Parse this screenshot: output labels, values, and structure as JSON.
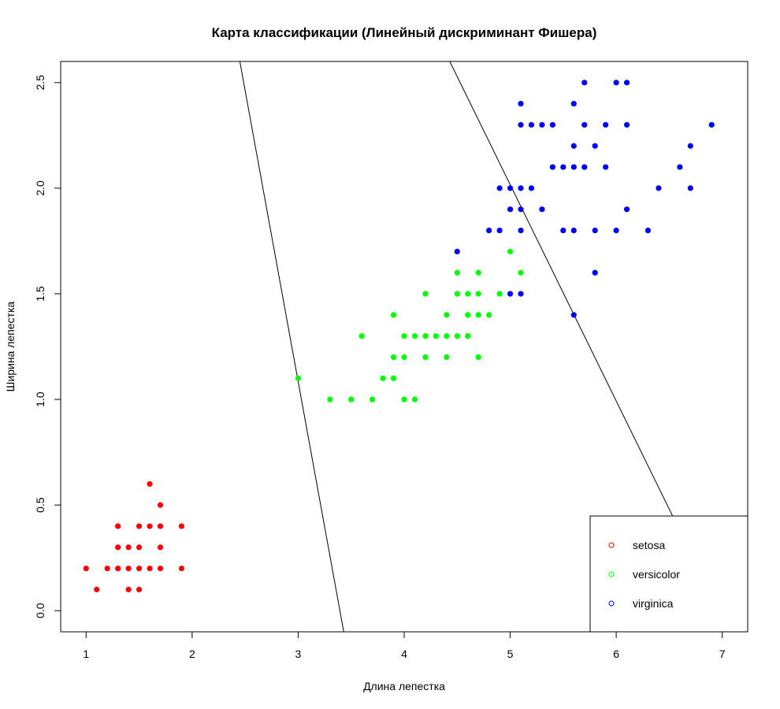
{
  "chart_data": {
    "type": "scatter",
    "title": "Карта классификации (Линейный дискриминант Фишера)",
    "xlabel": "Длина лепестка",
    "ylabel": "Ширина лепестка",
    "xlim": [
      0.76,
      7.24
    ],
    "ylim": [
      -0.1,
      2.6
    ],
    "xticks": [
      "1",
      "2",
      "3",
      "4",
      "5",
      "6",
      "7"
    ],
    "yticks": [
      "0.0",
      "0.5",
      "1.0",
      "1.5",
      "2.0",
      "2.5"
    ],
    "legend": {
      "placement": "bottom-right"
    },
    "colors": {
      "setosa": "#ff0000",
      "versicolor": "#00ff00",
      "virginica": "#0000ff",
      "line": "#000000"
    },
    "series": [
      {
        "name": "setosa",
        "points": [
          [
            1.0,
            0.2
          ],
          [
            1.1,
            0.1
          ],
          [
            1.2,
            0.2
          ],
          [
            1.3,
            0.2
          ],
          [
            1.3,
            0.3
          ],
          [
            1.3,
            0.4
          ],
          [
            1.4,
            0.1
          ],
          [
            1.4,
            0.2
          ],
          [
            1.4,
            0.3
          ],
          [
            1.5,
            0.1
          ],
          [
            1.5,
            0.2
          ],
          [
            1.5,
            0.3
          ],
          [
            1.5,
            0.4
          ],
          [
            1.6,
            0.2
          ],
          [
            1.6,
            0.4
          ],
          [
            1.6,
            0.6
          ],
          [
            1.7,
            0.2
          ],
          [
            1.7,
            0.3
          ],
          [
            1.7,
            0.4
          ],
          [
            1.7,
            0.5
          ],
          [
            1.9,
            0.2
          ],
          [
            1.9,
            0.4
          ]
        ]
      },
      {
        "name": "versicolor",
        "points": [
          [
            3.0,
            1.1
          ],
          [
            3.3,
            1.0
          ],
          [
            3.5,
            1.0
          ],
          [
            3.6,
            1.3
          ],
          [
            3.7,
            1.0
          ],
          [
            3.8,
            1.1
          ],
          [
            3.9,
            1.1
          ],
          [
            3.9,
            1.2
          ],
          [
            3.9,
            1.4
          ],
          [
            4.0,
            1.0
          ],
          [
            4.0,
            1.2
          ],
          [
            4.0,
            1.3
          ],
          [
            4.1,
            1.0
          ],
          [
            4.1,
            1.3
          ],
          [
            4.2,
            1.2
          ],
          [
            4.2,
            1.3
          ],
          [
            4.2,
            1.5
          ],
          [
            4.3,
            1.3
          ],
          [
            4.4,
            1.2
          ],
          [
            4.4,
            1.3
          ],
          [
            4.4,
            1.4
          ],
          [
            4.5,
            1.3
          ],
          [
            4.5,
            1.5
          ],
          [
            4.5,
            1.6
          ],
          [
            4.6,
            1.3
          ],
          [
            4.6,
            1.4
          ],
          [
            4.6,
            1.5
          ],
          [
            4.7,
            1.2
          ],
          [
            4.7,
            1.4
          ],
          [
            4.7,
            1.5
          ],
          [
            4.7,
            1.6
          ],
          [
            4.8,
            1.4
          ],
          [
            4.9,
            1.5
          ],
          [
            5.0,
            1.7
          ],
          [
            5.1,
            1.6
          ]
        ]
      },
      {
        "name": "virginica",
        "points": [
          [
            4.5,
            1.7
          ],
          [
            4.8,
            1.8
          ],
          [
            4.9,
            1.8
          ],
          [
            4.9,
            2.0
          ],
          [
            5.0,
            1.5
          ],
          [
            5.0,
            1.9
          ],
          [
            5.0,
            2.0
          ],
          [
            5.1,
            1.5
          ],
          [
            5.1,
            1.8
          ],
          [
            5.1,
            1.9
          ],
          [
            5.1,
            2.0
          ],
          [
            5.1,
            2.3
          ],
          [
            5.1,
            2.4
          ],
          [
            5.2,
            2.0
          ],
          [
            5.2,
            2.3
          ],
          [
            5.3,
            1.9
          ],
          [
            5.3,
            2.3
          ],
          [
            5.4,
            2.1
          ],
          [
            5.4,
            2.3
          ],
          [
            5.5,
            1.8
          ],
          [
            5.5,
            2.1
          ],
          [
            5.6,
            1.4
          ],
          [
            5.6,
            1.8
          ],
          [
            5.6,
            2.1
          ],
          [
            5.6,
            2.2
          ],
          [
            5.6,
            2.4
          ],
          [
            5.7,
            2.1
          ],
          [
            5.7,
            2.3
          ],
          [
            5.7,
            2.5
          ],
          [
            5.8,
            1.6
          ],
          [
            5.8,
            1.8
          ],
          [
            5.8,
            2.2
          ],
          [
            5.9,
            2.1
          ],
          [
            5.9,
            2.3
          ],
          [
            6.0,
            1.8
          ],
          [
            6.0,
            2.5
          ],
          [
            6.1,
            1.9
          ],
          [
            6.1,
            2.3
          ],
          [
            6.1,
            2.5
          ],
          [
            6.3,
            1.8
          ],
          [
            6.4,
            2.0
          ],
          [
            6.6,
            2.1
          ],
          [
            6.7,
            2.0
          ],
          [
            6.7,
            2.2
          ],
          [
            6.9,
            2.3
          ]
        ]
      }
    ],
    "boundaries": [
      {
        "x1": 2.45,
        "y1": 2.6,
        "x2": 3.43,
        "y2": -0.1
      },
      {
        "x1": 4.43,
        "y1": 2.6,
        "x2": 6.53,
        "y2": 0.45
      }
    ]
  }
}
